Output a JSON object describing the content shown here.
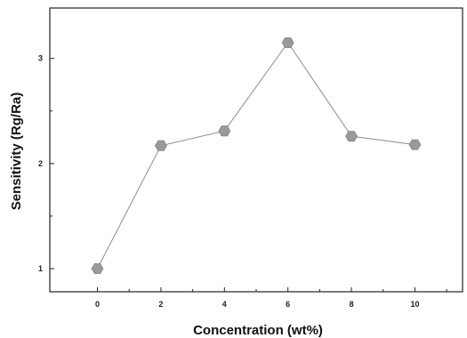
{
  "chart_data": {
    "type": "line",
    "title": "",
    "xlabel": "Concentration (wt%)",
    "ylabel": "Sensitivity (Rg/Ra)",
    "x": [
      0,
      2,
      4,
      6,
      8,
      10
    ],
    "series": [
      {
        "values": [
          1.0,
          2.17,
          2.31,
          3.15,
          2.26,
          2.18
        ]
      }
    ],
    "xlim": [
      -1.5,
      11.5
    ],
    "ylim": [
      0.78,
      3.48
    ],
    "xticks": [
      "0",
      "2",
      "4",
      "6",
      "8",
      "10"
    ],
    "yticks": [
      "1",
      "2",
      "3"
    ],
    "marker": "hexagon",
    "grid": false,
    "colors": {
      "line": "#8c8c8c",
      "marker": "#9a9a9a",
      "axis": "#222222"
    }
  }
}
